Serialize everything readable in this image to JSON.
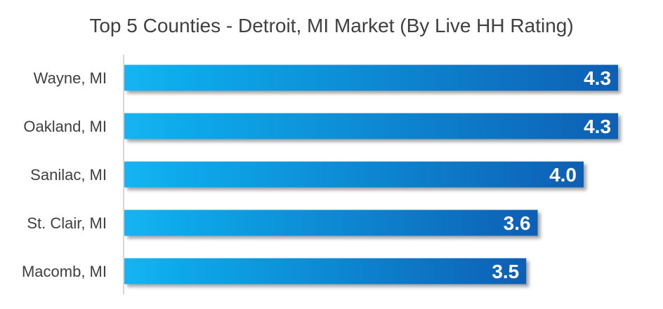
{
  "chart_data": {
    "type": "bar",
    "orientation": "horizontal",
    "title": "Top 5 Counties - Detroit, MI Market (By Live HH Rating)",
    "categories": [
      "Wayne, MI",
      "Oakland, MI",
      "Sanilac, MI",
      "St. Clair, MI",
      "Macomb, MI"
    ],
    "values": [
      4.3,
      4.3,
      4.0,
      3.6,
      3.5
    ],
    "value_labels": [
      "4.3",
      "4.3",
      "4.0",
      "3.6",
      "3.5"
    ],
    "xlim": [
      0,
      4.5
    ],
    "grid": false,
    "legend": "none",
    "colors": {
      "bar_start": "#12b4f2",
      "bar_end": "#0a5fb4",
      "axis": "#c9c9c9",
      "text": "#404040",
      "value_text": "#ffffff"
    }
  }
}
